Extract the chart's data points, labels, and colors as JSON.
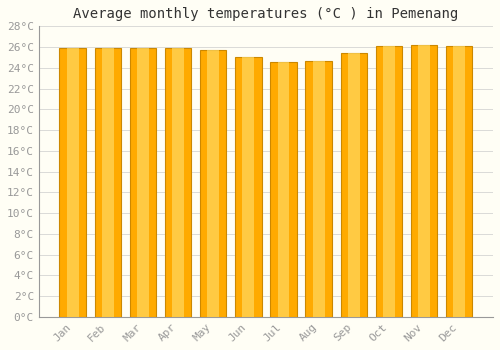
{
  "title": "Average monthly temperatures (°C ) in Pemenang",
  "months": [
    "Jan",
    "Feb",
    "Mar",
    "Apr",
    "May",
    "Jun",
    "Jul",
    "Aug",
    "Sep",
    "Oct",
    "Nov",
    "Dec"
  ],
  "values": [
    25.9,
    25.9,
    25.9,
    25.9,
    25.7,
    25.0,
    24.6,
    24.7,
    25.4,
    26.1,
    26.2,
    26.1
  ],
  "bar_color_main": "#FFAA00",
  "bar_color_light": "#FFD860",
  "bar_edge_color": "#CC8800",
  "background_color": "#FFFEF5",
  "grid_color": "#CCCCCC",
  "ylim": [
    0,
    28
  ],
  "ytick_step": 2,
  "title_fontsize": 10,
  "tick_fontsize": 8,
  "bar_width": 0.75,
  "label_color": "#999999",
  "spine_color": "#999999"
}
